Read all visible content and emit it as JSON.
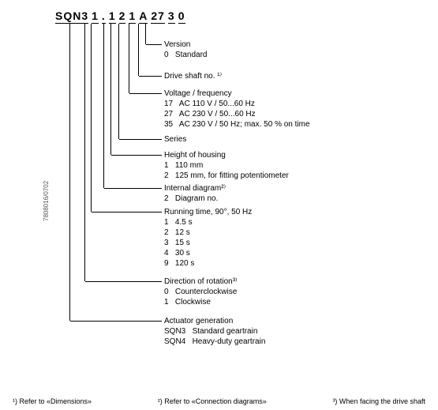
{
  "code_segments": [
    "SQN3",
    "1",
    ".",
    "1",
    "2",
    "1",
    "A",
    "27",
    "3",
    "0"
  ],
  "sections": [
    {
      "title": "Version",
      "lines": [
        "0   Standard"
      ]
    },
    {
      "title": "Drive shaft no. ¹⁾",
      "lines": []
    },
    {
      "title": "Voltage / frequency",
      "lines": [
        "17   AC 110 V / 50...60 Hz",
        "27   AC 230 V / 50...60 Hz",
        "35   AC 230 V / 50 Hz; max. 50 % on time"
      ]
    },
    {
      "title": "Series",
      "lines": []
    },
    {
      "title": "Height of housing",
      "lines": [
        "1   110 mm",
        "2   125 mm, for fitting potentiometer"
      ]
    },
    {
      "title": "Internal diagram²⁾",
      "lines": [
        "2   Diagram no."
      ]
    },
    {
      "title": "Running time, 90°, 50 Hz",
      "lines": [
        "1   4.5 s",
        "2   12 s",
        "3   15 s",
        "4   30 s",
        "9   120 s"
      ]
    },
    {
      "title": "Direction of rotation³⁾",
      "lines": [
        "0   Counterclockwise",
        "1   Clockwise"
      ]
    },
    {
      "title": "Actuator generation",
      "lines": [
        "SQN3   Standard geartrain",
        "SQN4   Heavy-duty geartrain"
      ]
    }
  ],
  "footnotes": [
    "¹) Refer to «Dimensions»",
    "²) Refer to «Connection  diagrams»",
    "³) When facing the drive shaft"
  ],
  "sidecode": "7808016/0702",
  "layout": {
    "section_tops": [
      50,
      90,
      112,
      170,
      190,
      232,
      262,
      350,
      400
    ],
    "code_x": [
      88,
      107,
      115,
      122,
      131,
      140,
      150,
      163,
      175,
      184
    ],
    "conn_map": [
      9,
      8,
      7,
      6,
      5,
      4,
      2,
      1,
      0
    ]
  }
}
